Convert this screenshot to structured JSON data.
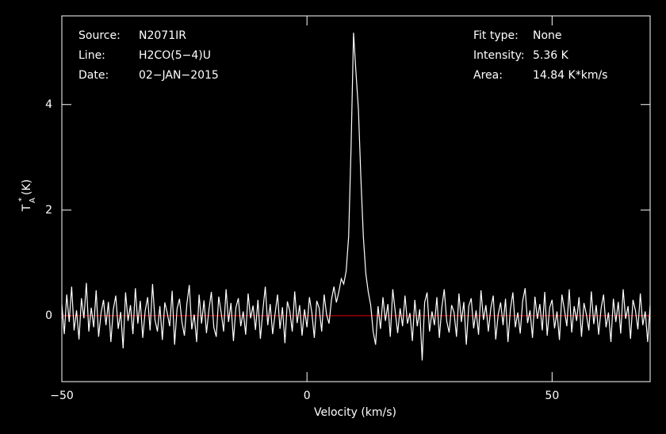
{
  "chart_data": {
    "type": "line",
    "info_left": [
      {
        "label": "Source:",
        "value": "N2071IR"
      },
      {
        "label": "Line:",
        "value": "H2CO(5−4)U"
      },
      {
        "label": "Date:",
        "value": "02−JAN−2015"
      }
    ],
    "info_right": [
      {
        "label": "Fit type:",
        "value": "None"
      },
      {
        "label": "Intensity:",
        "value": "5.36 K"
      },
      {
        "label": "Area:",
        "value": "14.84 K*km/s"
      }
    ],
    "xlabel": "Velocity (km/s)",
    "ylabel": "T",
    "ylabel_sup": "*",
    "ylabel_sub": "A",
    "ylabel_unit": "(K)",
    "xlim": [
      -50,
      70
    ],
    "ylim": [
      -1.25,
      5.68
    ],
    "xticks": [
      {
        "value": -50,
        "label": "−50"
      },
      0,
      50
    ],
    "yticks": [
      0,
      2,
      4
    ],
    "baseline": 0,
    "baseline_color": "#e00000",
    "series": [
      {
        "color": "#ffffff",
        "x": [
          -50,
          -49.5,
          -49,
          -48.5,
          -48,
          -47.5,
          -47,
          -46.5,
          -46,
          -45.5,
          -45,
          -44.5,
          -44,
          -43.5,
          -43,
          -42.5,
          -42,
          -41.5,
          -41,
          -40.5,
          -40,
          -39.5,
          -39,
          -38.5,
          -38,
          -37.5,
          -37,
          -36.5,
          -36,
          -35.5,
          -35,
          -34.5,
          -34,
          -33.5,
          -33,
          -32.5,
          -32,
          -31.5,
          -31,
          -30.5,
          -30,
          -29.5,
          -29,
          -28.5,
          -28,
          -27.5,
          -27,
          -26.5,
          -26,
          -25.5,
          -25,
          -24.5,
          -24,
          -23.5,
          -23,
          -22.5,
          -22,
          -21.5,
          -21,
          -20.5,
          -20,
          -19.5,
          -19,
          -18.5,
          -18,
          -17.5,
          -17,
          -16.5,
          -16,
          -15.5,
          -15,
          -14.5,
          -14,
          -13.5,
          -13,
          -12.5,
          -12,
          -11.5,
          -11,
          -10.5,
          -10,
          -9.5,
          -9,
          -8.5,
          -8,
          -7.5,
          -7,
          -6.5,
          -6,
          -5.5,
          -5,
          -4.5,
          -4,
          -3.5,
          -3,
          -2.5,
          -2,
          -1.5,
          -1,
          -0.5,
          0,
          0.5,
          1,
          1.5,
          2,
          2.5,
          3,
          3.5,
          4,
          4.5,
          5,
          5.5,
          6,
          6.5,
          7,
          7.5,
          8,
          8.5,
          9,
          9.5,
          10,
          10.5,
          11,
          11.5,
          12,
          12.5,
          13,
          13.5,
          14,
          14.5,
          15,
          15.5,
          16,
          16.5,
          17,
          17.5,
          18,
          18.5,
          19,
          19.5,
          20,
          20.5,
          21,
          21.5,
          22,
          22.5,
          23,
          23.5,
          24,
          24.5,
          25,
          25.5,
          26,
          26.5,
          27,
          27.5,
          28,
          28.5,
          29,
          29.5,
          30,
          30.5,
          31,
          31.5,
          32,
          32.5,
          33,
          33.5,
          34,
          34.5,
          35,
          35.5,
          36,
          36.5,
          37,
          37.5,
          38,
          38.5,
          39,
          39.5,
          40,
          40.5,
          41,
          41.5,
          42,
          42.5,
          43,
          43.5,
          44,
          44.5,
          45,
          45.5,
          46,
          46.5,
          47,
          47.5,
          48,
          48.5,
          49,
          49.5,
          50,
          50.5,
          51,
          51.5,
          52,
          52.5,
          53,
          53.5,
          54,
          54.5,
          55,
          55.5,
          56,
          56.5,
          57,
          57.5,
          58,
          58.5,
          59,
          59.5,
          60,
          60.5,
          61,
          61.5,
          62,
          62.5,
          63,
          63.5,
          64,
          64.5,
          65,
          65.5,
          66,
          66.5,
          67,
          67.5,
          68,
          68.5,
          69,
          69.5,
          70
        ],
        "values": [
          0.21,
          -0.35,
          0.4,
          -0.12,
          0.55,
          -0.28,
          0.1,
          -0.45,
          0.33,
          -0.05,
          0.62,
          -0.3,
          0.15,
          -0.22,
          0.48,
          -0.4,
          0.05,
          0.3,
          -0.18,
          0.26,
          -0.5,
          0.12,
          0.38,
          -0.25,
          0.07,
          -0.62,
          0.44,
          -0.1,
          0.2,
          -0.35,
          0.52,
          -0.15,
          0.28,
          -0.42,
          0.09,
          0.35,
          -0.28,
          0.6,
          -0.08,
          -0.3,
          0.18,
          -0.46,
          0.25,
          0.05,
          -0.2,
          0.47,
          -0.55,
          0.13,
          0.32,
          -0.12,
          -0.38,
          0.22,
          0.58,
          -0.26,
          0.02,
          -0.5,
          0.4,
          -0.15,
          0.29,
          -0.33,
          0.11,
          0.45,
          -0.22,
          -0.4,
          0.36,
          0.06,
          -0.3,
          0.5,
          -0.12,
          0.24,
          -0.48,
          0.15,
          0.33,
          -0.2,
          0.08,
          -0.36,
          0.42,
          -0.05,
          0.19,
          -0.27,
          0.3,
          -0.44,
          0.1,
          0.55,
          -0.18,
          0.22,
          -0.35,
          0.04,
          0.4,
          -0.25,
          0.16,
          -0.52,
          0.27,
          0.09,
          -0.3,
          0.46,
          -0.14,
          0.2,
          -0.38,
          0.12,
          -0.22,
          0.35,
          0.05,
          -0.42,
          0.28,
          0.14,
          -0.3,
          0.4,
          0.02,
          -0.15,
          0.3,
          0.55,
          0.25,
          0.45,
          0.7,
          0.6,
          0.85,
          1.5,
          3.2,
          5.36,
          4.6,
          3.9,
          2.6,
          1.5,
          0.8,
          0.45,
          0.2,
          -0.3,
          -0.55,
          0.18,
          -0.25,
          0.35,
          -0.1,
          0.22,
          -0.4,
          0.5,
          0.08,
          -0.33,
          0.14,
          -0.2,
          0.38,
          -0.15,
          0.05,
          -0.48,
          0.3,
          -0.2,
          0.12,
          -0.85,
          0.25,
          0.44,
          -0.3,
          0.08,
          -0.18,
          0.35,
          -0.42,
          0.15,
          0.5,
          -0.1,
          -0.32,
          0.2,
          0.06,
          -0.4,
          0.42,
          -0.12,
          0.26,
          -0.55,
          0.18,
          0.33,
          -0.24,
          0.1,
          -0.36,
          0.48,
          -0.08,
          0.2,
          -0.3,
          0.14,
          0.38,
          -0.45,
          0.02,
          0.25,
          -0.18,
          0.32,
          -0.5,
          0.12,
          0.44,
          -0.22,
          0.06,
          -0.34,
          0.28,
          0.52,
          -0.14,
          0.1,
          -0.42,
          0.36,
          -0.06,
          0.22,
          -0.28,
          0.45,
          -0.38,
          0.15,
          0.3,
          -0.24,
          0.08,
          -0.46,
          0.4,
          0.12,
          -0.2,
          0.5,
          -0.32,
          0.18,
          -0.1,
          0.35,
          -0.4,
          0.24,
          0.02,
          -0.28,
          0.46,
          -0.16,
          0.2,
          -0.36,
          0.14,
          0.4,
          -0.22,
          0.06,
          -0.5,
          0.32,
          -0.12,
          0.26,
          -0.34,
          0.5,
          -0.06,
          0.18,
          -0.44,
          0.3,
          0.1,
          -0.26,
          0.42,
          -0.18,
          0.08,
          -0.5,
          0.2
        ]
      }
    ]
  }
}
